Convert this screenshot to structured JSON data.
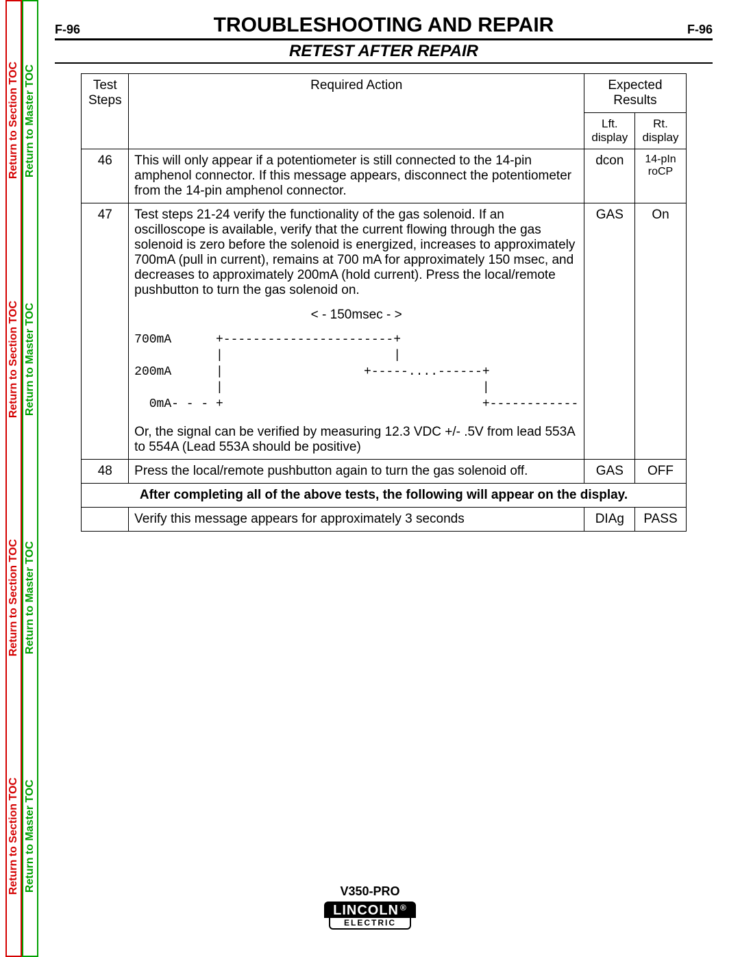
{
  "pageNumLeft": "F-96",
  "pageNumRight": "F-96",
  "title": "TROUBLESHOOTING AND REPAIR",
  "subtitle": "RETEST AFTER REPAIR",
  "sidebar": {
    "sectionLabel": "Return to Section TOC",
    "masterLabel": "Return to Master TOC"
  },
  "table": {
    "headers": {
      "steps": "Test Steps",
      "action": "Required Action",
      "expected": "Expected Results",
      "lft": "Lft. display",
      "rt": "Rt. display"
    },
    "rows": [
      {
        "step": "46",
        "action": "This will only appear if a potentiometer is still connected to the 14-pin amphenol connector.  If this message appears, disconnect the potentiometer from the 14-pin amphenol connector.",
        "lft": "dcon",
        "rt": "14-pIn roCP",
        "rtSmall": true
      },
      {
        "step": "47",
        "actionPre": "Test steps 21-24 verify the functionality of the gas solenoid.  If an oscilloscope is available, verify that the current flowing through the gas solenoid is zero before the solenoid is energized, increases to approximately 700mA (pull in current), remains at 700 mA for approximately 150 msec, and decreases to approximately 200mA (hold current).  Press the local/remote pushbutton to turn the gas solenoid on.",
        "chartTime": "< - 150msec - >",
        "chart": "700mA      +-----------------------+\n           |                       |\n200mA      |                   +-----....------+\n           |                                   |\n  0mA- - - +                                   +------------",
        "actionPost": "Or, the signal can be verified by measuring 12.3 VDC +/- .5V from lead 553A to 554A (Lead 553A should be positive)",
        "lft": "GAS",
        "rt": "On"
      },
      {
        "step": "48",
        "action": "Press the local/remote pushbutton again to turn the gas solenoid off.",
        "lft": "GAS",
        "rt": "OFF"
      }
    ],
    "sectionNote": "After completing all of the above tests, the following will appear on the display.",
    "finalRow": {
      "step": "",
      "action": "Verify this message appears for approximately 3 seconds",
      "lft": "DIAg",
      "rt": "PASS"
    }
  },
  "footer": {
    "model": "V350-PRO",
    "logoTop": "LINCOLN",
    "logoBot": "ELECTRIC",
    "reg": "®"
  },
  "colors": {
    "red": "#d40000",
    "green": "#00a000",
    "black": "#000000",
    "white": "#ffffff"
  }
}
